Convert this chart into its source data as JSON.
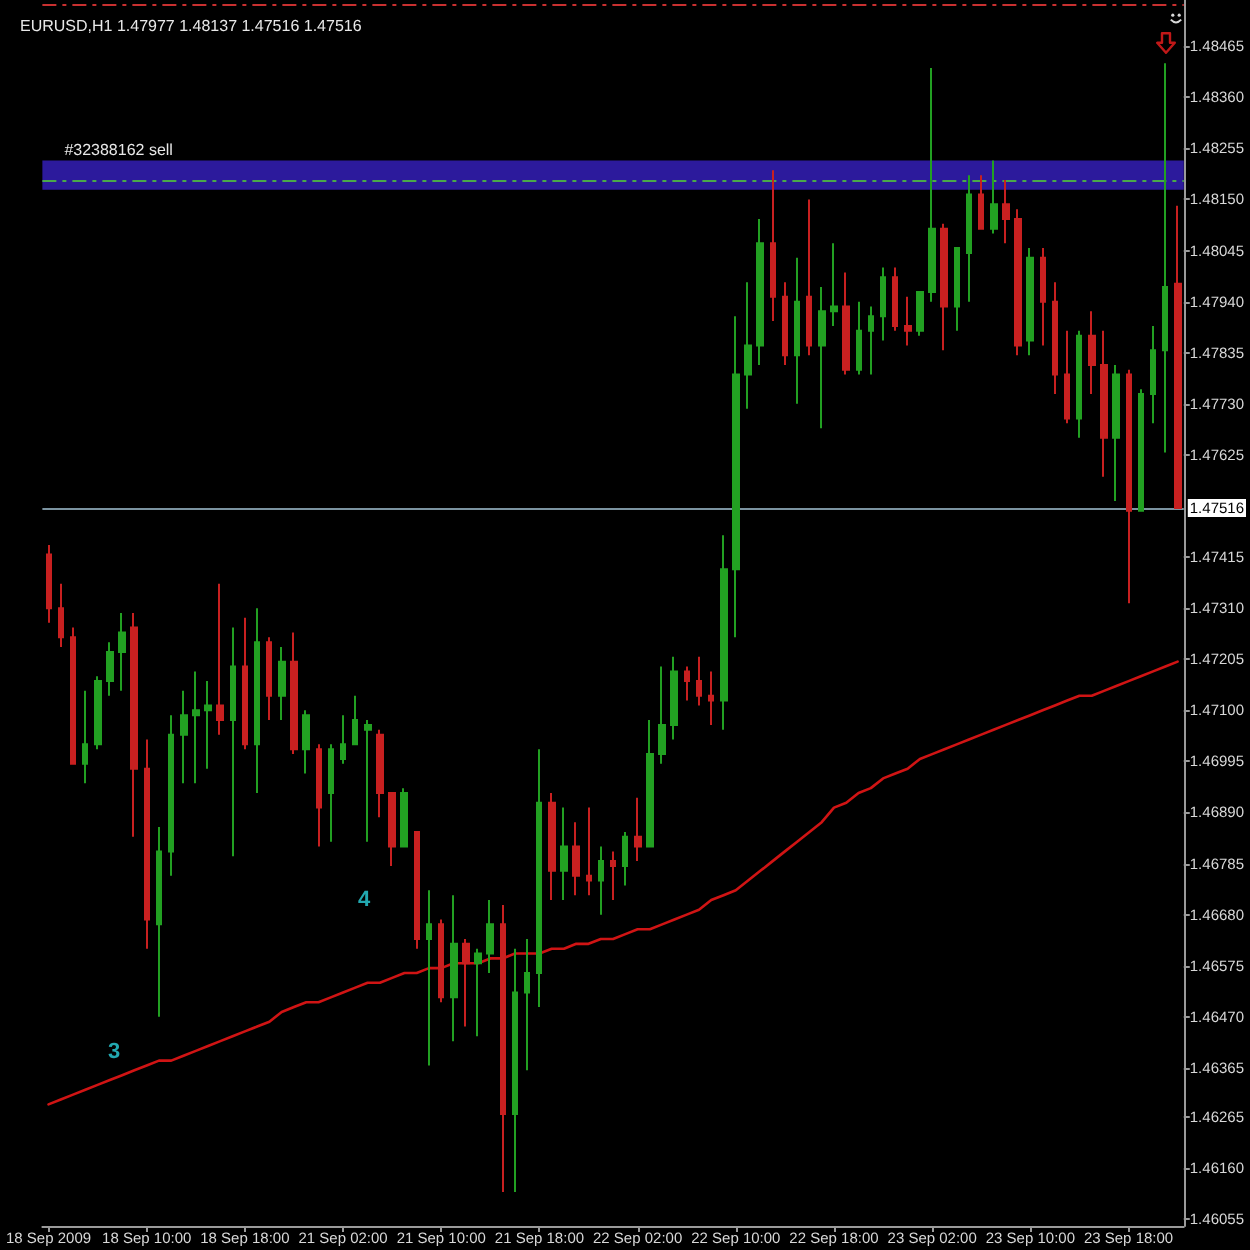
{
  "chart_data": {
    "type": "candlestick",
    "title": "EURUSD,H1 1.47977 1.48137 1.47516 1.47516",
    "categories": [
      "18 Sep 2009",
      null,
      null,
      null,
      null,
      null,
      null,
      null,
      "18 Sep 10:00",
      null,
      null,
      null,
      null,
      null,
      null,
      null,
      "18 Sep 18:00",
      null,
      null,
      null,
      null,
      null,
      null,
      null,
      "21 Sep 02:00",
      null,
      null,
      null,
      null,
      null,
      null,
      null,
      "21 Sep 10:00",
      null,
      null,
      null,
      null,
      null,
      null,
      null,
      "21 Sep 18:00",
      null,
      null,
      null,
      null,
      null,
      null,
      null,
      "22 Sep 02:00",
      null,
      null,
      null,
      null,
      null,
      null,
      null,
      "22 Sep 10:00",
      null,
      null,
      null,
      null,
      null,
      null,
      null,
      "22 Sep 18:00",
      null,
      null,
      null,
      null,
      null,
      null,
      null,
      "23 Sep 02:00",
      null,
      null,
      null,
      null,
      null,
      null,
      null,
      "23 Sep 10:00",
      null,
      null,
      null,
      null,
      null,
      null,
      null,
      "23 Sep 18:00",
      null,
      null,
      null,
      null
    ],
    "series": [
      {
        "ohlc": [
          [
            1.4742,
            1.4744,
            1.4728,
            1.4731
          ],
          [
            1.4731,
            1.4736,
            1.4723,
            1.4725
          ],
          [
            1.4725,
            1.4727,
            1.4699,
            1.4699
          ],
          [
            1.4699,
            1.4714,
            1.4695,
            1.4703
          ],
          [
            1.4703,
            1.4717,
            1.4702,
            1.4716
          ],
          [
            1.4716,
            1.4724,
            1.4713,
            1.4722
          ],
          [
            1.4722,
            1.473,
            1.4714,
            1.4726
          ],
          [
            1.4727,
            1.473,
            1.4684,
            1.4698
          ],
          [
            1.4698,
            1.4704,
            1.4661,
            1.4667
          ],
          [
            1.4666,
            1.4686,
            1.4647,
            1.4681
          ],
          [
            1.4681,
            1.4709,
            1.4676,
            1.4705
          ],
          [
            1.4705,
            1.4714,
            1.4695,
            1.4709
          ],
          [
            1.4709,
            1.4718,
            1.4695,
            1.471
          ],
          [
            1.471,
            1.4716,
            1.4698,
            1.4711
          ],
          [
            1.4711,
            1.4736,
            1.4705,
            1.4708
          ],
          [
            1.4708,
            1.4727,
            1.468,
            1.4719
          ],
          [
            1.4719,
            1.4729,
            1.4702,
            1.4703
          ],
          [
            1.4703,
            1.4731,
            1.4693,
            1.4724
          ],
          [
            1.4724,
            1.4725,
            1.4708,
            1.4713
          ],
          [
            1.4713,
            1.4723,
            1.4708,
            1.472
          ],
          [
            1.472,
            1.4726,
            1.4701,
            1.4702
          ],
          [
            1.4702,
            1.471,
            1.4697,
            1.4709
          ],
          [
            1.4702,
            1.4703,
            1.4682,
            1.469
          ],
          [
            1.4693,
            1.4703,
            1.4683,
            1.4702
          ],
          [
            1.47,
            1.4709,
            1.4699,
            1.4703
          ],
          [
            1.4703,
            1.4713,
            1.4703,
            1.4708
          ],
          [
            1.4706,
            1.4708,
            1.4683,
            1.4707
          ],
          [
            1.4705,
            1.4706,
            1.4688,
            1.4693
          ],
          [
            1.4693,
            1.4693,
            1.4678,
            1.4682
          ],
          [
            1.4682,
            1.4694,
            1.4682,
            1.4693
          ],
          [
            1.4685,
            1.4685,
            1.4661,
            1.4663
          ],
          [
            1.4663,
            1.4673,
            1.4637,
            1.4666
          ],
          [
            1.4666,
            1.4667,
            1.465,
            1.4651
          ],
          [
            1.4651,
            1.4672,
            1.4642,
            1.4662
          ],
          [
            1.4662,
            1.4663,
            1.4645,
            1.4658
          ],
          [
            1.4658,
            1.4661,
            1.4643,
            1.466
          ],
          [
            1.466,
            1.4671,
            1.4656,
            1.4666
          ],
          [
            1.4666,
            1.467,
            1.4611,
            1.4627
          ],
          [
            1.4627,
            1.4661,
            1.4611,
            1.4652
          ],
          [
            1.4652,
            1.4663,
            1.4636,
            1.4656
          ],
          [
            1.4656,
            1.4702,
            1.4649,
            1.4691
          ],
          [
            1.4691,
            1.4693,
            1.4671,
            1.4677
          ],
          [
            1.4677,
            1.469,
            1.4671,
            1.4682
          ],
          [
            1.4682,
            1.4687,
            1.4672,
            1.4676
          ],
          [
            1.4676,
            1.469,
            1.4672,
            1.4675
          ],
          [
            1.4675,
            1.4682,
            1.4668,
            1.4679
          ],
          [
            1.4679,
            1.4681,
            1.4671,
            1.4678
          ],
          [
            1.4678,
            1.4685,
            1.4674,
            1.4684
          ],
          [
            1.4684,
            1.4692,
            1.4679,
            1.4682
          ],
          [
            1.4682,
            1.4708,
            1.4682,
            1.4701
          ],
          [
            1.4701,
            1.4719,
            1.4699,
            1.4707
          ],
          [
            1.4707,
            1.4721,
            1.4704,
            1.4718
          ],
          [
            1.4718,
            1.4719,
            1.4712,
            1.4716
          ],
          [
            1.4716,
            1.4721,
            1.4711,
            1.4713
          ],
          [
            1.4713,
            1.4718,
            1.4707,
            1.4712
          ],
          [
            1.4712,
            1.4746,
            1.4706,
            1.4739
          ],
          [
            1.4739,
            1.4791,
            1.4725,
            1.4779
          ],
          [
            1.4779,
            1.4798,
            1.4772,
            1.4785
          ],
          [
            1.4785,
            1.4811,
            1.4781,
            1.4806
          ],
          [
            1.4806,
            1.4821,
            1.479,
            1.4795
          ],
          [
            1.4795,
            1.4798,
            1.4781,
            1.4783
          ],
          [
            1.4783,
            1.4803,
            1.4773,
            1.4794
          ],
          [
            1.4795,
            1.4815,
            1.4783,
            1.4785
          ],
          [
            1.4785,
            1.4797,
            1.4768,
            1.4792
          ],
          [
            1.4792,
            1.4806,
            1.4789,
            1.4793
          ],
          [
            1.4793,
            1.48,
            1.4779,
            1.478
          ],
          [
            1.478,
            1.4794,
            1.4779,
            1.4788
          ],
          [
            1.4788,
            1.4793,
            1.4779,
            1.4791
          ],
          [
            1.4791,
            1.4801,
            1.4786,
            1.4799
          ],
          [
            1.4799,
            1.4801,
            1.4788,
            1.4789
          ],
          [
            1.4789,
            1.4795,
            1.4785,
            1.4788
          ],
          [
            1.4788,
            1.4796,
            1.4787,
            1.4796
          ],
          [
            1.4796,
            1.4842,
            1.4794,
            1.4809
          ],
          [
            1.4809,
            1.481,
            1.4784,
            1.4793
          ],
          [
            1.4793,
            1.4805,
            1.4788,
            1.4805
          ],
          [
            1.4804,
            1.482,
            1.4794,
            1.4816
          ],
          [
            1.4816,
            1.482,
            1.4809,
            1.4809
          ],
          [
            1.4809,
            1.4823,
            1.4808,
            1.4814
          ],
          [
            1.4814,
            1.4819,
            1.4806,
            1.4811
          ],
          [
            1.4811,
            1.4813,
            1.4783,
            1.4785
          ],
          [
            1.4786,
            1.4805,
            1.4783,
            1.4803
          ],
          [
            1.4803,
            1.4805,
            1.4785,
            1.4794
          ],
          [
            1.4794,
            1.4798,
            1.4775,
            1.4779
          ],
          [
            1.4779,
            1.4788,
            1.4769,
            1.477
          ],
          [
            1.477,
            1.4788,
            1.4766,
            1.4787
          ],
          [
            1.4787,
            1.4792,
            1.4775,
            1.4781
          ],
          [
            1.4781,
            1.4788,
            1.4758,
            1.4766
          ],
          [
            1.4766,
            1.4781,
            1.4753,
            1.4779
          ],
          [
            1.4779,
            1.478,
            1.4732,
            1.4751
          ],
          [
            1.4751,
            1.4776,
            1.4751,
            1.4775
          ],
          [
            1.4775,
            1.4789,
            1.4769,
            1.4784
          ],
          [
            1.4784,
            1.4843,
            1.4763,
            1.4797
          ],
          [
            1.47977,
            1.48137,
            1.47516,
            1.47516
          ]
        ],
        "colors": [
          "#c82020",
          "#c82020",
          "#c82020",
          "#22a022",
          "#22a022",
          "#22a022",
          "#22a022",
          "#c82020",
          "#c82020",
          "#22a022",
          "#22a022",
          "#22a022",
          "#22a022",
          "#22a022",
          "#c82020",
          "#22a022",
          "#c82020",
          "#22a022",
          "#c82020",
          "#22a022",
          "#c82020",
          "#22a022",
          "#c82020",
          "#22a022",
          "#22a022",
          "#22a022",
          "#22a022",
          "#c82020",
          "#c82020",
          "#22a022",
          "#c82020",
          "#22a022",
          "#c82020",
          "#22a022",
          "#c82020",
          "#22a022",
          "#22a022",
          "#c82020",
          "#22a022",
          "#22a022",
          "#22a022",
          "#c82020",
          "#22a022",
          "#c82020",
          "#c82020",
          "#22a022",
          "#c82020",
          "#22a022",
          "#c82020",
          "#22a022",
          "#22a022",
          "#22a022",
          "#c82020",
          "#c82020",
          "#c82020",
          "#22a022",
          "#22a022",
          "#22a022",
          "#22a022",
          "#c82020",
          "#c82020",
          "#22a022",
          "#c82020",
          "#22a022",
          "#22a022",
          "#c82020",
          "#22a022",
          "#22a022",
          "#22a022",
          "#c82020",
          "#c82020",
          "#22a022",
          "#22a022",
          "#c82020",
          "#22a022",
          "#22a022",
          "#c82020",
          "#22a022",
          "#c82020",
          "#c82020",
          "#22a022",
          "#c82020",
          "#c82020",
          "#c82020",
          "#22a022",
          "#c82020",
          "#c82020",
          "#22a022",
          "#c82020",
          "#22a022",
          "#22a022",
          "#22a022",
          "#c82020"
        ]
      },
      {
        "type": "line",
        "color": "#d01414",
        "values": [
          1.4629,
          1.463,
          1.4631,
          1.4632,
          1.4633,
          1.4634,
          1.4635,
          1.4636,
          1.4637,
          1.4638,
          1.4638,
          1.4639,
          1.464,
          1.4641,
          1.4642,
          1.4643,
          1.4644,
          1.4645,
          1.4646,
          1.4648,
          1.4649,
          1.465,
          1.465,
          1.4651,
          1.4652,
          1.4653,
          1.4654,
          1.4654,
          1.4655,
          1.4656,
          1.4656,
          1.4657,
          1.4657,
          1.4658,
          1.4658,
          1.4658,
          1.4659,
          1.4659,
          1.466,
          1.466,
          1.466,
          1.4661,
          1.4661,
          1.4662,
          1.4662,
          1.4663,
          1.4663,
          1.4664,
          1.4665,
          1.4665,
          1.4666,
          1.4667,
          1.4668,
          1.4669,
          1.4671,
          1.4672,
          1.4673,
          1.4675,
          1.4677,
          1.4679,
          1.4681,
          1.4683,
          1.4685,
          1.4687,
          1.469,
          1.4691,
          1.4693,
          1.4694,
          1.4696,
          1.4697,
          1.4698,
          1.47,
          1.4701,
          1.4702,
          1.4703,
          1.4704,
          1.4705,
          1.4706,
          1.4707,
          1.4708,
          1.4709,
          1.471,
          1.4711,
          1.4712,
          1.4713,
          1.4713,
          1.4714,
          1.4715,
          1.4716,
          1.4717,
          1.4718,
          1.4719,
          1.472
        ]
      }
    ],
    "ylim": [
      1.4604,
      1.4856
    ],
    "yticks": [
      1.48465,
      {
        "value": 1.4836,
        "label": "1.48360"
      },
      1.48255,
      {
        "value": 1.4815,
        "label": "1.48150"
      },
      1.48045,
      {
        "value": 1.4794,
        "label": "1.47940"
      },
      1.47835,
      {
        "value": 1.4773,
        "label": "1.47730"
      },
      1.47625,
      1.47415,
      {
        "value": 1.4731,
        "label": "1.47310"
      },
      1.47205,
      {
        "value": 1.471,
        "label": "1.47100"
      },
      1.46995,
      {
        "value": 1.4689,
        "label": "1.46890"
      },
      1.46785,
      {
        "value": 1.4668,
        "label": "1.46680"
      },
      1.46575,
      {
        "value": 1.4647,
        "label": "1.46470"
      },
      1.46365,
      1.46265,
      {
        "value": 1.4616,
        "label": "1.46160"
      },
      1.46055
    ],
    "ref_lines": [
      {
        "axis": "y",
        "value": 1.4819,
        "label": "#32388162 sell",
        "color": "#4aa84a",
        "line_style": "dashed"
      },
      {
        "axis": "y",
        "value": 1.47516,
        "label": "1.47516",
        "color": "#7b93a0"
      },
      {
        "axis": "y",
        "value": 1.4855,
        "color": "#c83030",
        "line_style": "dashed"
      }
    ],
    "bands": [
      {
        "axis": "y",
        "from": 1.4817,
        "to": 1.4823,
        "color": "#2c1a9c"
      }
    ],
    "annotations": [
      "3",
      "4"
    ]
  }
}
